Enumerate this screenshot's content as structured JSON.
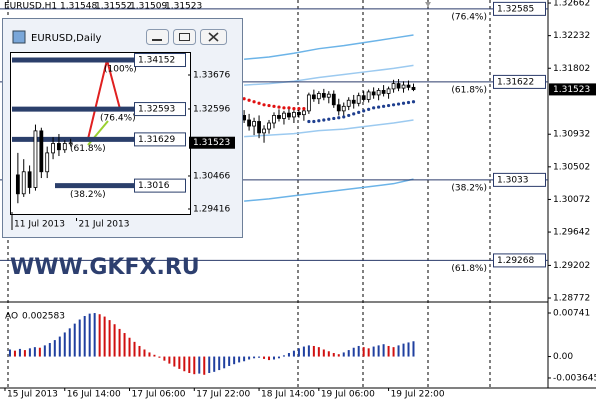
{
  "chart_data": [
    {
      "type": "candlestick",
      "symbol": "EURUSD,H1",
      "quote": [
        1.31548,
        1.31552,
        1.31509,
        1.31523
      ],
      "watermark": "WWW.GKFX.RU",
      "last_price": 1.31523,
      "xlim": [
        0,
        110
      ],
      "ylim": [
        1.32702,
        1.28746
      ],
      "xticks": [
        {
          "value": 1,
          "label": "15 Jul 2013"
        },
        {
          "value": 13,
          "label": "16 Jul 14:00"
        },
        {
          "value": 26,
          "label": "17 Jul 06:00"
        },
        {
          "value": 39,
          "label": "17 Jul 22:00"
        },
        {
          "value": 52,
          "label": "18 Jul 14:00"
        },
        {
          "value": 64,
          "label": "19 Jul 06:00"
        },
        {
          "value": 78,
          "label": "19 Jul 22:00"
        }
      ],
      "yticks": [
        1.32662,
        1.32232,
        1.31802,
        1.30932,
        1.30502,
        1.30072,
        1.29642,
        1.29202,
        1.28772
      ],
      "levels": [
        {
          "value": 1.32585,
          "percent": "(76.4%)"
        },
        {
          "value": 1.31622,
          "percent": "(61.8%)"
        },
        {
          "value": 1.3033,
          "percent": "(38.2%)"
        },
        {
          "value": 1.29268,
          "percent": "(61.8%)"
        }
      ],
      "level_color": "#2a3a6a",
      "candles": {
        "x": [
          49,
          50,
          51,
          52,
          53,
          54,
          55,
          56,
          57,
          58,
          59,
          60,
          61,
          62,
          63,
          64,
          65,
          66,
          67,
          68,
          69,
          70,
          71,
          72,
          73,
          74,
          75,
          76,
          77,
          78,
          79,
          80,
          81,
          82,
          83
        ],
        "open": [
          1.3118,
          1.3112,
          1.3104,
          1.311,
          1.3095,
          1.31,
          1.3108,
          1.3118,
          1.3114,
          1.3121,
          1.3116,
          1.3122,
          1.3119,
          1.3124,
          1.3145,
          1.314,
          1.3147,
          1.3142,
          1.3146,
          1.3132,
          1.3124,
          1.313,
          1.3138,
          1.3134,
          1.3144,
          1.3139,
          1.3149,
          1.3145,
          1.3151,
          1.3147,
          1.3153,
          1.316,
          1.3154,
          1.3158,
          1.3155
        ],
        "high": [
          1.3125,
          1.312,
          1.3115,
          1.3118,
          1.3105,
          1.3112,
          1.3122,
          1.3126,
          1.3124,
          1.3127,
          1.3125,
          1.3129,
          1.3126,
          1.3148,
          1.3152,
          1.315,
          1.3153,
          1.315,
          1.3151,
          1.314,
          1.3135,
          1.3142,
          1.3145,
          1.3148,
          1.315,
          1.3152,
          1.3155,
          1.3154,
          1.3158,
          1.3156,
          1.3165,
          1.3166,
          1.3163,
          1.3164,
          1.316
        ],
        "low": [
          1.3108,
          1.3098,
          1.3092,
          1.3088,
          1.3082,
          1.3094,
          1.3101,
          1.311,
          1.3106,
          1.3112,
          1.3108,
          1.3115,
          1.3111,
          1.312,
          1.3136,
          1.3133,
          1.3138,
          1.3134,
          1.3128,
          1.3118,
          1.3116,
          1.3125,
          1.3127,
          1.313,
          1.3136,
          1.3135,
          1.314,
          1.3138,
          1.3143,
          1.314,
          1.3148,
          1.315,
          1.3148,
          1.3151,
          1.315
        ],
        "close": [
          1.3112,
          1.3104,
          1.311,
          1.3095,
          1.31,
          1.3108,
          1.3118,
          1.3114,
          1.3121,
          1.3116,
          1.3122,
          1.3119,
          1.3124,
          1.3145,
          1.314,
          1.3147,
          1.3142,
          1.3146,
          1.3132,
          1.3124,
          1.313,
          1.3138,
          1.3134,
          1.3144,
          1.3139,
          1.3149,
          1.3145,
          1.3151,
          1.3147,
          1.3153,
          1.316,
          1.3154,
          1.3158,
          1.3155,
          1.3152
        ]
      },
      "bands": [
        {
          "color": "#6cb4e8",
          "x": [
            49,
            54,
            59,
            64,
            69,
            74,
            79,
            83
          ],
          "values": [
            1.3192,
            1.3195,
            1.32,
            1.3206,
            1.321,
            1.3215,
            1.322,
            1.3224
          ]
        },
        {
          "color": "#9ccaf0",
          "x": [
            49,
            54,
            59,
            64,
            69,
            74,
            79,
            83
          ],
          "values": [
            1.3158,
            1.316,
            1.3163,
            1.3168,
            1.3172,
            1.3176,
            1.318,
            1.3184
          ]
        },
        {
          "color": "#9ccaf0",
          "x": [
            49,
            54,
            59,
            64,
            69,
            74,
            79,
            83
          ],
          "values": [
            1.309,
            1.3092,
            1.3094,
            1.3098,
            1.31,
            1.3104,
            1.3108,
            1.3112
          ]
        },
        {
          "color": "#6cb4e8",
          "x": [
            49,
            54,
            59,
            64,
            69,
            74,
            79,
            83
          ],
          "values": [
            1.3005,
            1.3008,
            1.3012,
            1.3016,
            1.302,
            1.3024,
            1.3028,
            1.3034
          ]
        }
      ],
      "sar": [
        {
          "color": "#e01010",
          "x": [
            49,
            50,
            51,
            52,
            53,
            54,
            55,
            56,
            57,
            58,
            59,
            60,
            61
          ],
          "values": [
            1.314,
            1.3138,
            1.3136,
            1.3134,
            1.3132,
            1.3131,
            1.313,
            1.3129,
            1.3128,
            1.3128,
            1.3127,
            1.3127,
            1.3127
          ]
        },
        {
          "color": "#1f3f8f",
          "x": [
            62,
            63,
            64,
            65,
            66,
            67,
            68,
            69,
            70,
            71,
            72,
            73,
            74,
            75,
            76,
            77,
            78,
            79,
            80,
            81,
            82,
            83
          ],
          "values": [
            1.311,
            1.311,
            1.3111,
            1.3112,
            1.3113,
            1.3114,
            1.3115,
            1.3116,
            1.3118,
            1.312,
            1.3122,
            1.3124,
            1.3126,
            1.3128,
            1.3129,
            1.313,
            1.3131,
            1.3132,
            1.3133,
            1.3134,
            1.3135,
            1.3136
          ]
        }
      ]
    },
    {
      "type": "histogram",
      "name": "AO",
      "last": 0.002583,
      "up_color": "#1f3f9f",
      "down_color": "#d01010",
      "xlim": [
        0,
        110
      ],
      "ylim": [
        0.00911,
        -0.00535
      ],
      "yticks": [
        0.00741,
        {
          "value": 0,
          "label": "0.00"
        },
        -0.003645
      ],
      "x": [
        2,
        3,
        4,
        5,
        6,
        7,
        8,
        9,
        10,
        11,
        12,
        13,
        14,
        15,
        16,
        17,
        18,
        19,
        20,
        21,
        22,
        23,
        24,
        25,
        26,
        27,
        28,
        29,
        30,
        31,
        32,
        33,
        34,
        35,
        36,
        37,
        38,
        39,
        40,
        41,
        42,
        43,
        44,
        45,
        46,
        47,
        48,
        49,
        50,
        51,
        52,
        53,
        54,
        55,
        56,
        57,
        58,
        59,
        60,
        61,
        62,
        63,
        64,
        65,
        66,
        67,
        68,
        69,
        70,
        71,
        72,
        73,
        74,
        75,
        76,
        77,
        78,
        79,
        80,
        81,
        82,
        83
      ],
      "values": [
        0.0012,
        0.001,
        0.0013,
        0.0011,
        0.0014,
        0.0016,
        0.0015,
        0.0019,
        0.0023,
        0.0028,
        0.0034,
        0.0041,
        0.0048,
        0.0056,
        0.0063,
        0.0069,
        0.0073,
        0.0074,
        0.0072,
        0.0068,
        0.0062,
        0.0055,
        0.0047,
        0.004,
        0.0032,
        0.0025,
        0.0018,
        0.0012,
        0.0007,
        0.0003,
        -0.0002,
        -0.0007,
        -0.0012,
        -0.0017,
        -0.0021,
        -0.0025,
        -0.0028,
        -0.003,
        -0.0029,
        -0.0031,
        -0.0028,
        -0.0026,
        -0.0023,
        -0.002,
        -0.0016,
        -0.0013,
        -0.001,
        -0.0008,
        -0.0005,
        -0.0003,
        -0.0002,
        -0.0004,
        -0.0006,
        -0.0005,
        -0.0003,
        0.0002,
        0.0006,
        0.001,
        0.0014,
        0.0017,
        0.0019,
        0.0018,
        0.0016,
        0.0012,
        0.0009,
        0.0006,
        0.0004,
        0.0007,
        0.0011,
        0.0015,
        0.0018,
        0.0016,
        0.0014,
        0.0017,
        0.0019,
        0.0021,
        0.0018,
        0.0016,
        0.0019,
        0.0022,
        0.0024,
        0.0026
      ]
    },
    {
      "type": "candlestick",
      "symbol": "EURUSD,Daily",
      "last_price": 1.31523,
      "xlim": [
        0,
        30
      ],
      "ylim": [
        1.34407,
        1.29321
      ],
      "xticks": [
        {
          "value": 0,
          "label": "11 Jul 2013"
        },
        {
          "value": 11,
          "label": "21 Jul 2013"
        }
      ],
      "yticks": [
        1.33676,
        1.32596,
        1.30466,
        1.29416
      ],
      "levels": [
        {
          "value": 1.34152,
          "percent": "(100%)"
        },
        {
          "value": 1.32593,
          "percent": "(76.4%)"
        },
        {
          "value": 1.31629,
          "percent": "(61.8%)"
        },
        {
          "value": 1.3016,
          "percent": "(38.2%)"
        }
      ],
      "level_color": "#2b3f6b",
      "candles": {
        "x": [
          1,
          2,
          3,
          4,
          5,
          6,
          7,
          8,
          9,
          10
        ],
        "open": [
          1.305,
          1.299,
          1.306,
          1.301,
          1.319,
          1.306,
          1.312,
          1.315,
          1.313,
          1.315
        ],
        "high": [
          1.312,
          1.31,
          1.308,
          1.321,
          1.32,
          1.314,
          1.317,
          1.318,
          1.316,
          1.3165
        ],
        "low": [
          1.296,
          1.298,
          1.299,
          1.3,
          1.304,
          1.304,
          1.31,
          1.311,
          1.312,
          1.314
        ],
        "close": [
          1.299,
          1.306,
          1.301,
          1.319,
          1.306,
          1.312,
          1.315,
          1.313,
          1.315,
          1.3152
        ]
      }
    }
  ]
}
